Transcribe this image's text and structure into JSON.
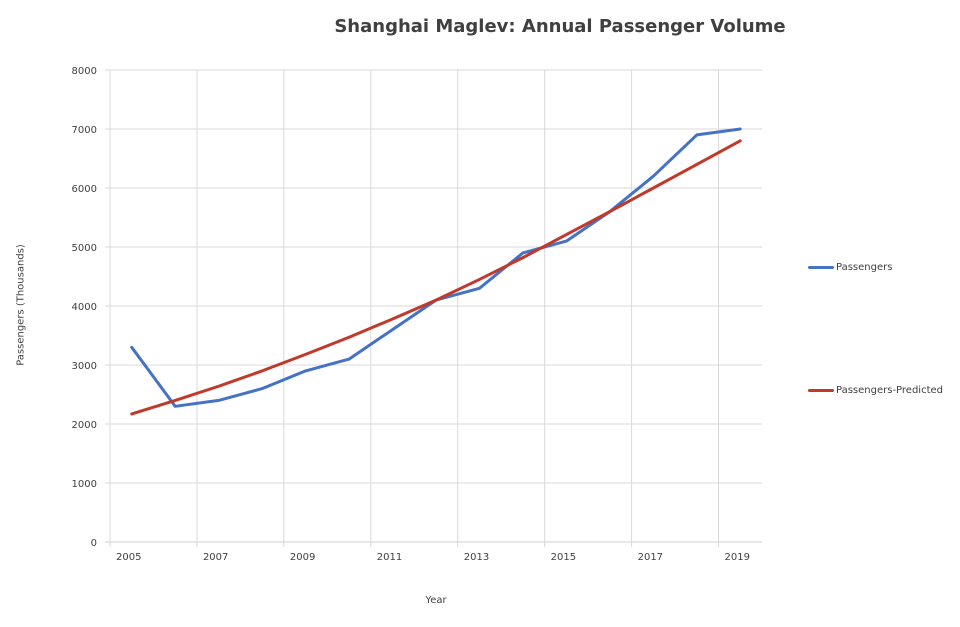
{
  "chart_data": {
    "type": "line",
    "title": "Shanghai Maglev: Annual Passenger Volume",
    "xlabel": "Year",
    "ylabel": "Passengers (Thousands)",
    "ylim": [
      0,
      8000
    ],
    "yticks": [
      "0",
      "1000",
      "2000",
      "3000",
      "4000",
      "5000",
      "6000",
      "7000",
      "8000"
    ],
    "ytick_values": [
      0,
      1000,
      2000,
      3000,
      4000,
      5000,
      6000,
      7000,
      8000
    ],
    "categories": [
      "2005",
      "2006",
      "2007",
      "2008",
      "2009",
      "2010",
      "2011",
      "2012",
      "2013",
      "2014",
      "2015",
      "2016",
      "2017",
      "2018",
      "2019"
    ],
    "xtick_labels": [
      "2005",
      "2007",
      "2009",
      "2011",
      "2013",
      "2015",
      "2017",
      "2019"
    ],
    "grid": true,
    "legend_position": "right",
    "series": [
      {
        "name": "Passengers",
        "color": "#4472c4",
        "values": [
          3300,
          2300,
          2400,
          2600,
          2900,
          3100,
          3600,
          4100,
          4300,
          4900,
          5100,
          5600,
          6200,
          6900,
          7000
        ]
      },
      {
        "name": "Passengers-Predicted",
        "color": "#c0392b",
        "values": [
          2170,
          2400,
          2640,
          2900,
          3180,
          3470,
          3780,
          4100,
          4450,
          4820,
          5210,
          5600,
          6000,
          6400,
          6800
        ]
      }
    ]
  }
}
